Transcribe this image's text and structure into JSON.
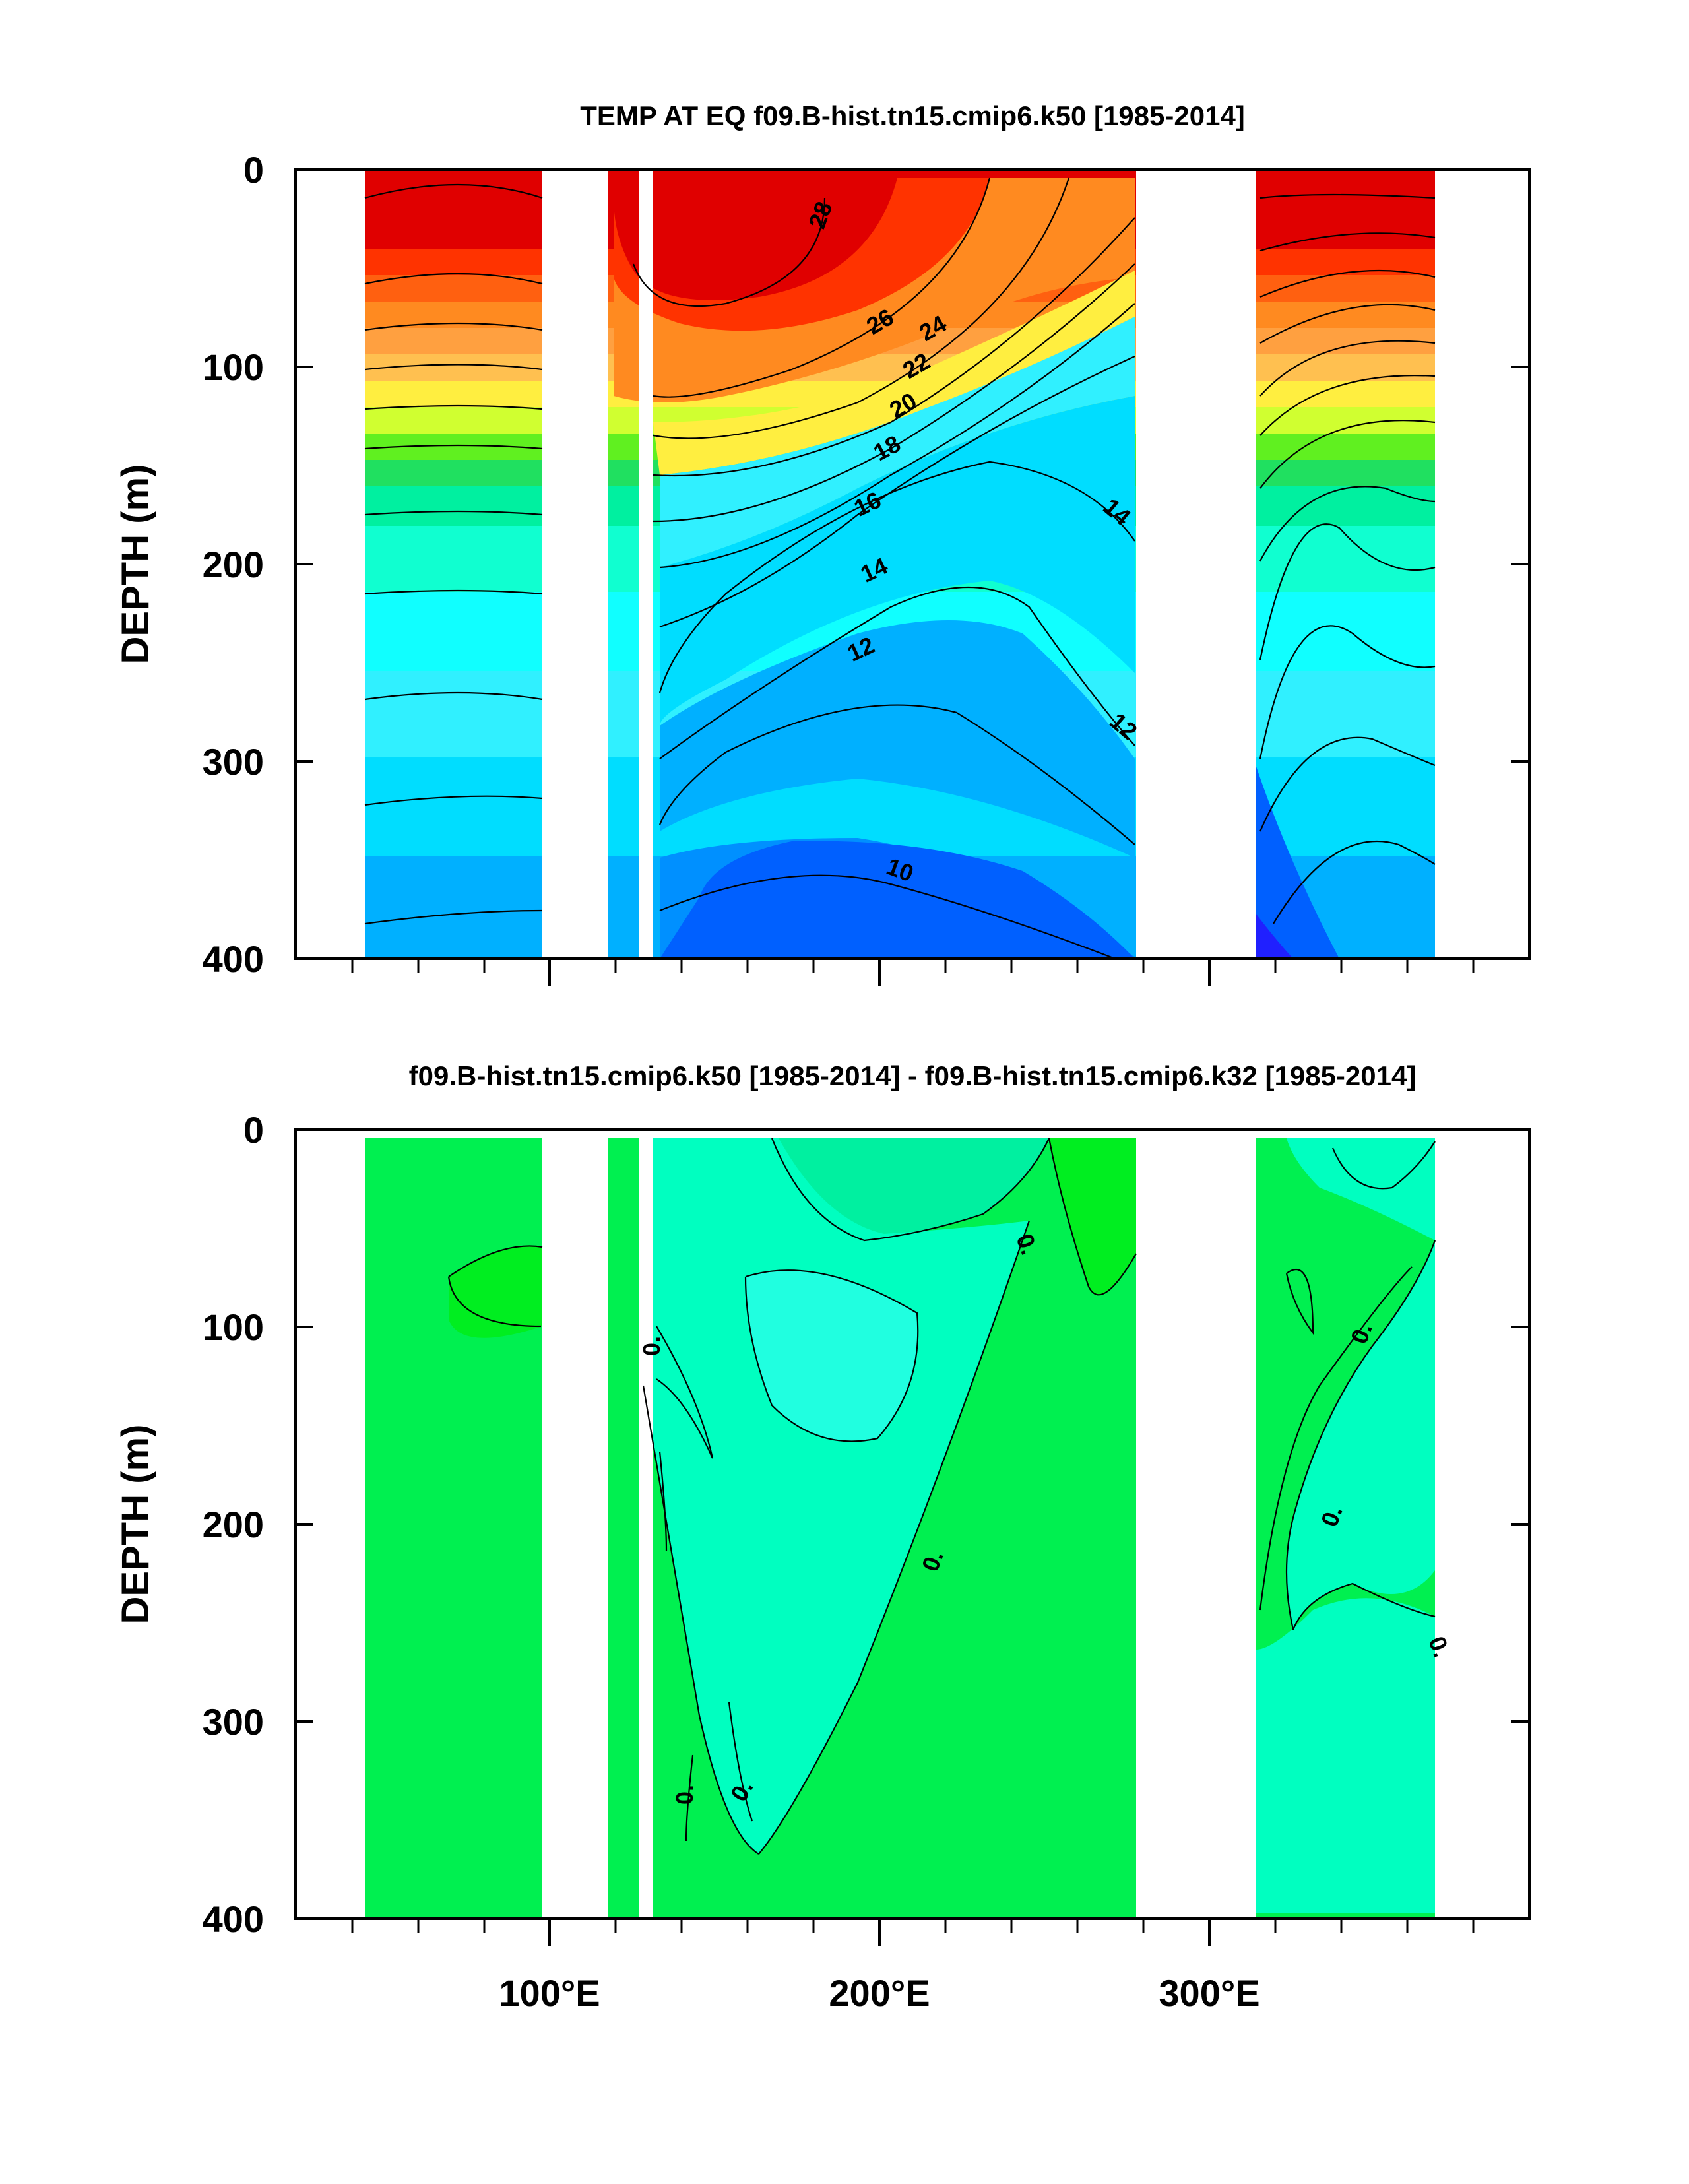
{
  "chart_data": [
    {
      "type": "heatmap",
      "title": "TEMP AT EQ f09.B-hist.tn15.cmip6.k50 [1985-2014]",
      "xlabel": "",
      "ylabel": "DEPTH (m)",
      "xlim": [
        30,
        390
      ],
      "ylim": [
        0,
        400
      ],
      "y_reversed": true,
      "xtick_labels": [
        "100°E",
        "200°E",
        "300°E"
      ],
      "ytick_labels": [
        "0",
        "100",
        "200",
        "300",
        "400"
      ],
      "colorbar_shown": false,
      "grid": false,
      "land_gaps_lon": [
        [
          97,
          117
        ],
        [
          128,
          131
        ],
        [
          278,
          315
        ]
      ],
      "contour_labels": [
        {
          "value": "28",
          "x": 186,
          "y": 22
        },
        {
          "value": "26",
          "x": 200,
          "y": 78
        },
        {
          "value": "24",
          "x": 217,
          "y": 82
        },
        {
          "value": "22",
          "x": 212,
          "y": 101
        },
        {
          "value": "20",
          "x": 208,
          "y": 122
        },
        {
          "value": "18",
          "x": 203,
          "y": 140
        },
        {
          "value": "16",
          "x": 195,
          "y": 168
        },
        {
          "value": "14",
          "x": 198,
          "y": 202
        },
        {
          "value": "14",
          "x": 270,
          "y": 172
        },
        {
          "value": "12",
          "x": 193,
          "y": 245
        },
        {
          "value": "12",
          "x": 270,
          "y": 282
        },
        {
          "value": "10",
          "x": 190,
          "y": 356
        }
      ],
      "thermocline_20C_depth": [
        {
          "lon": 50,
          "depth": 130
        },
        {
          "lon": 97,
          "depth": 118
        },
        {
          "lon": 117,
          "depth": 150
        },
        {
          "lon": 150,
          "depth": 165
        },
        {
          "lon": 200,
          "depth": 125
        },
        {
          "lon": 240,
          "depth": 80
        },
        {
          "lon": 278,
          "depth": 40
        },
        {
          "lon": 315,
          "depth": 120
        },
        {
          "lon": 370,
          "depth": 60
        }
      ]
    },
    {
      "type": "heatmap",
      "title": "f09.B-hist.tn15.cmip6.k50 [1985-2014] - f09.B-hist.tn15.cmip6.k32 [1985-2014]",
      "xlabel": "",
      "ylabel": "DEPTH (m)",
      "xlim": [
        30,
        390
      ],
      "ylim": [
        0,
        400
      ],
      "y_reversed": true,
      "xtick_labels": [
        "100°E",
        "200°E",
        "300°E"
      ],
      "ytick_labels": [
        "0",
        "100",
        "200",
        "300",
        "400"
      ],
      "colorbar_shown": false,
      "grid": false,
      "contour_labels": [
        {
          "value": "0.",
          "x": 133,
          "y": 110
        },
        {
          "value": "0.",
          "x": 246,
          "y": 60
        },
        {
          "value": "0.",
          "x": 220,
          "y": 220
        },
        {
          "value": "0.",
          "x": 141,
          "y": 337
        },
        {
          "value": "0.",
          "x": 160,
          "y": 337
        },
        {
          "value": "0.",
          "x": 348,
          "y": 105
        },
        {
          "value": "0.",
          "x": 342,
          "y": 210
        },
        {
          "value": "0.",
          "x": 367,
          "y": 265
        }
      ]
    }
  ]
}
